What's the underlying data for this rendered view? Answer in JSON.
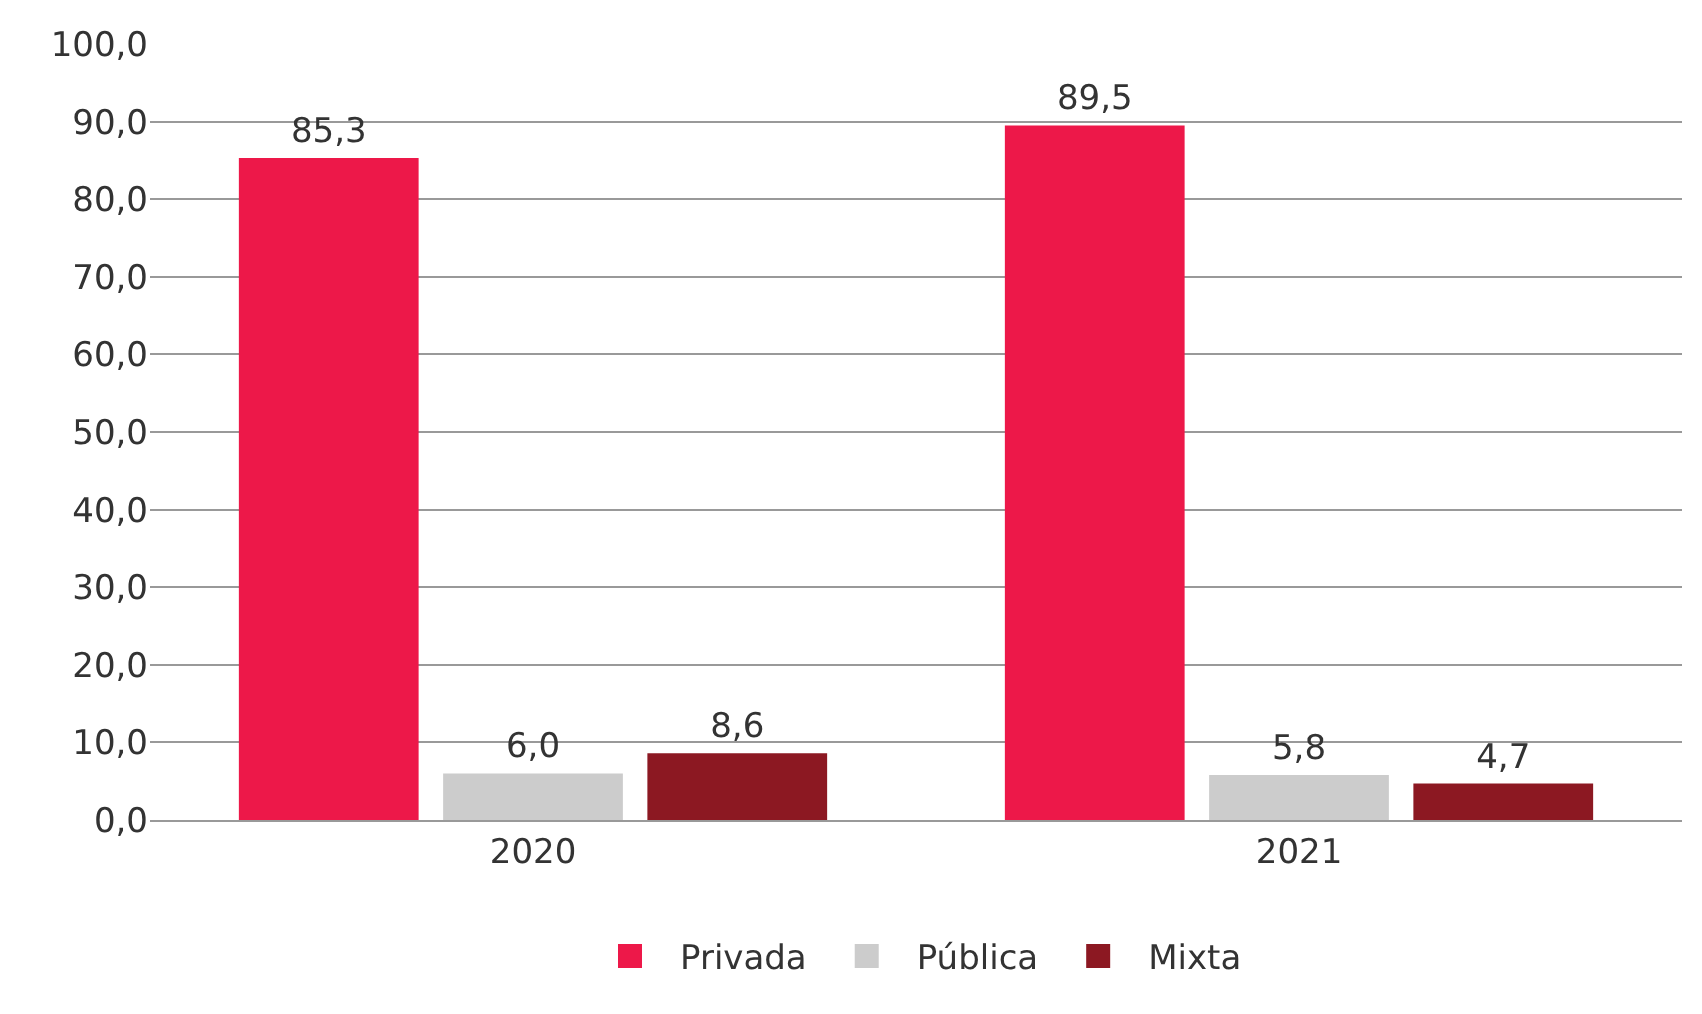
{
  "chart_data": {
    "type": "bar",
    "categories": [
      "2020",
      "2021"
    ],
    "series": [
      {
        "name": "Privada",
        "color": "#ed1849",
        "values": [
          85.3,
          89.5
        ],
        "value_labels": [
          "85,3",
          "89,5"
        ]
      },
      {
        "name": "Pública",
        "color": "#cccccc",
        "values": [
          6.0,
          5.8
        ],
        "value_labels": [
          "6,0",
          "5,8"
        ]
      },
      {
        "name": "Mixta",
        "color": "#8c1822",
        "values": [
          8.6,
          4.7
        ],
        "value_labels": [
          "8,6",
          "4,7"
        ]
      }
    ],
    "ylim": [
      0,
      100
    ],
    "yticks": [
      {
        "value": 0,
        "label": "0,0"
      },
      {
        "value": 10,
        "label": "10,0"
      },
      {
        "value": 20,
        "label": "20,0"
      },
      {
        "value": 30,
        "label": "30,0"
      },
      {
        "value": 40,
        "label": "40,0"
      },
      {
        "value": 50,
        "label": "50,0"
      },
      {
        "value": 60,
        "label": "60,0"
      },
      {
        "value": 70,
        "label": "70,0"
      },
      {
        "value": 80,
        "label": "80,0"
      },
      {
        "value": 90,
        "label": "90,0"
      },
      {
        "value": 100,
        "label": "100,0"
      }
    ],
    "grid": "y",
    "legend": "bottom"
  }
}
